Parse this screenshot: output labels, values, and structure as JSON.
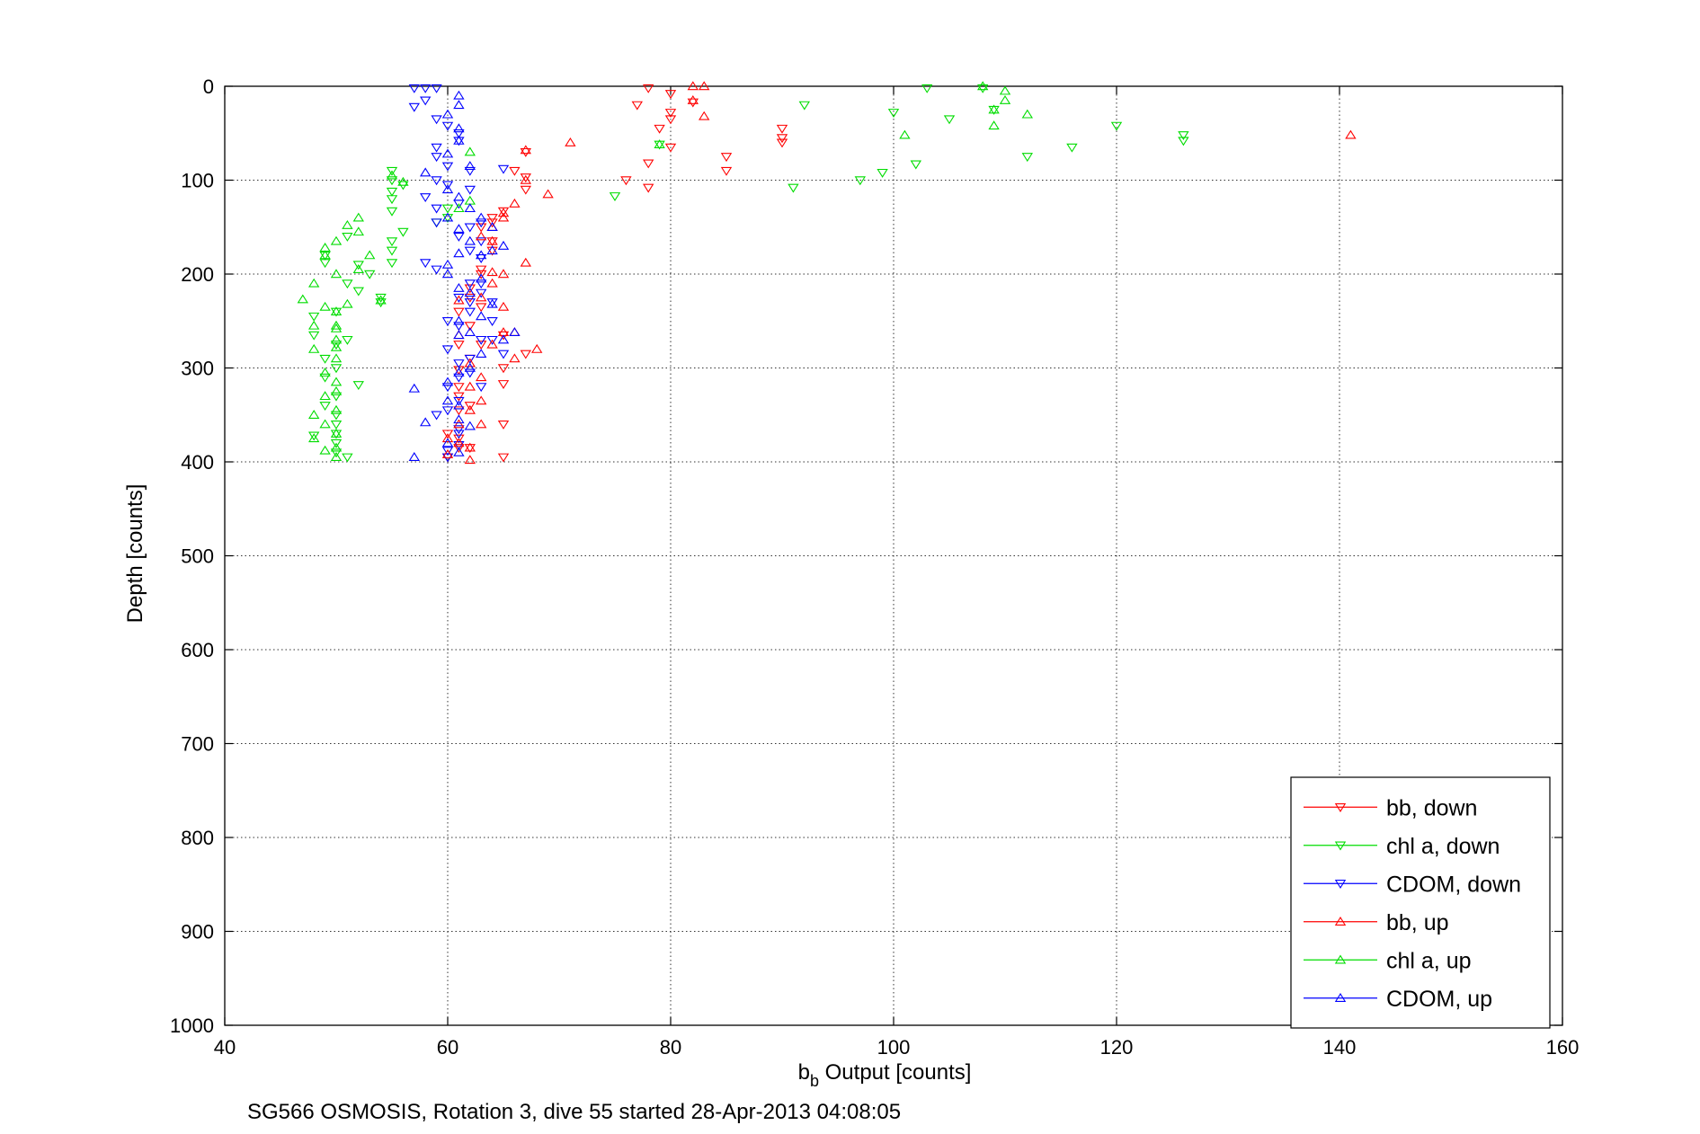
{
  "chart_data": {
    "type": "scatter",
    "xlabel_main": "b",
    "xlabel_sub": "b",
    "xlabel_rest": " Output [counts]",
    "ylabel": "Depth [counts]",
    "caption": "SG566 OSMOSIS, Rotation 3, dive 55 started 28-Apr-2013 04:08:05",
    "xlim": [
      40,
      160
    ],
    "ylim": [
      0,
      1000
    ],
    "y_reversed": true,
    "x_ticks": [
      "40",
      "60",
      "80",
      "100",
      "120",
      "140",
      "160"
    ],
    "y_ticks": [
      "0",
      "100",
      "200",
      "300",
      "400",
      "500",
      "600",
      "700",
      "800",
      "900",
      "1000"
    ],
    "grid": true,
    "legend_position": "bottom-right",
    "series": [
      {
        "name": "bb, down",
        "color": "#ff0000",
        "marker": "triangle-down",
        "points": [
          [
            78,
            2
          ],
          [
            77,
            20
          ],
          [
            80,
            8
          ],
          [
            80,
            28
          ],
          [
            80,
            35
          ],
          [
            79,
            45
          ],
          [
            80,
            65
          ],
          [
            78,
            82
          ],
          [
            76,
            100
          ],
          [
            78,
            108
          ],
          [
            82,
            17
          ],
          [
            85,
            75
          ],
          [
            85,
            90
          ],
          [
            90,
            45
          ],
          [
            90,
            55
          ],
          [
            90,
            60
          ],
          [
            67,
            70
          ],
          [
            66,
            90
          ],
          [
            67,
            97
          ],
          [
            67,
            110
          ],
          [
            65,
            133
          ],
          [
            64,
            145
          ],
          [
            63,
            150
          ],
          [
            64,
            165
          ],
          [
            64,
            175
          ],
          [
            63,
            195
          ],
          [
            62,
            215
          ],
          [
            62,
            225
          ],
          [
            63,
            235
          ],
          [
            61,
            240
          ],
          [
            62,
            255
          ],
          [
            61,
            275
          ],
          [
            63,
            275
          ],
          [
            62,
            290
          ],
          [
            61,
            302
          ],
          [
            61,
            320
          ],
          [
            61,
            330
          ],
          [
            62,
            340
          ],
          [
            61,
            345
          ],
          [
            65,
            300
          ],
          [
            65,
            317
          ],
          [
            65,
            360
          ],
          [
            60,
            370
          ],
          [
            61,
            375
          ],
          [
            61,
            385
          ],
          [
            62,
            385
          ],
          [
            60,
            395
          ],
          [
            65,
            395
          ],
          [
            67,
            285
          ],
          [
            65,
            265
          ],
          [
            64,
            140
          ],
          [
            63,
            200
          ]
        ]
      },
      {
        "name": "chl a, down",
        "color": "#00dd00",
        "marker": "triangle-down",
        "points": [
          [
            103,
            2
          ],
          [
            108,
            2
          ],
          [
            92,
            20
          ],
          [
            100,
            28
          ],
          [
            105,
            35
          ],
          [
            109,
            25
          ],
          [
            112,
            75
          ],
          [
            116,
            65
          ],
          [
            120,
            42
          ],
          [
            126,
            52
          ],
          [
            126,
            58
          ],
          [
            102,
            83
          ],
          [
            99,
            92
          ],
          [
            97,
            100
          ],
          [
            91,
            108
          ],
          [
            75,
            117
          ],
          [
            55,
            90
          ],
          [
            55,
            100
          ],
          [
            56,
            105
          ],
          [
            55,
            112
          ],
          [
            55,
            120
          ],
          [
            55,
            133
          ],
          [
            55,
            188
          ],
          [
            56,
            155
          ],
          [
            55,
            165
          ],
          [
            55,
            175
          ],
          [
            51,
            160
          ],
          [
            49,
            180
          ],
          [
            52,
            190
          ],
          [
            53,
            200
          ],
          [
            51,
            210
          ],
          [
            52,
            218
          ],
          [
            54,
            225
          ],
          [
            54,
            230
          ],
          [
            49,
            188
          ],
          [
            48,
            245
          ],
          [
            50,
            240
          ],
          [
            48,
            265
          ],
          [
            51,
            270
          ],
          [
            50,
            275
          ],
          [
            49,
            290
          ],
          [
            50,
            300
          ],
          [
            49,
            310
          ],
          [
            52,
            318
          ],
          [
            50,
            330
          ],
          [
            49,
            340
          ],
          [
            50,
            350
          ],
          [
            50,
            360
          ],
          [
            50,
            370
          ],
          [
            50,
            380
          ],
          [
            50,
            390
          ],
          [
            48,
            372
          ],
          [
            51,
            395
          ],
          [
            59,
            145
          ],
          [
            60,
            130
          ],
          [
            60,
            140
          ],
          [
            79,
            62
          ]
        ]
      },
      {
        "name": "CDOM, down",
        "color": "#0000ff",
        "marker": "triangle-down",
        "points": [
          [
            57,
            2
          ],
          [
            58,
            2
          ],
          [
            59,
            2
          ],
          [
            58,
            15
          ],
          [
            57,
            22
          ],
          [
            59,
            35
          ],
          [
            60,
            42
          ],
          [
            61,
            50
          ],
          [
            61,
            58
          ],
          [
            59,
            65
          ],
          [
            59,
            75
          ],
          [
            60,
            85
          ],
          [
            59,
            100
          ],
          [
            60,
            105
          ],
          [
            58,
            118
          ],
          [
            62,
            110
          ],
          [
            61,
            125
          ],
          [
            59,
            130
          ],
          [
            59,
            145
          ],
          [
            61,
            160
          ],
          [
            62,
            175
          ],
          [
            63,
            183
          ],
          [
            58,
            188
          ],
          [
            59,
            195
          ],
          [
            62,
            210
          ],
          [
            63,
            220
          ],
          [
            61,
            225
          ],
          [
            62,
            240
          ],
          [
            60,
            250
          ],
          [
            61,
            255
          ],
          [
            60,
            280
          ],
          [
            62,
            290
          ],
          [
            61,
            295
          ],
          [
            61,
            310
          ],
          [
            60,
            320
          ],
          [
            61,
            335
          ],
          [
            60,
            345
          ],
          [
            59,
            350
          ],
          [
            61,
            370
          ],
          [
            61,
            382
          ],
          [
            60,
            395
          ],
          [
            60,
            388
          ],
          [
            61,
            365
          ],
          [
            63,
            165
          ],
          [
            62,
            150
          ],
          [
            65,
            88
          ],
          [
            62,
            90
          ],
          [
            63,
            145
          ],
          [
            63,
            210
          ],
          [
            62,
            230
          ],
          [
            64,
            230
          ],
          [
            64,
            250
          ],
          [
            63,
            270
          ],
          [
            65,
            285
          ],
          [
            64,
            270
          ],
          [
            62,
            305
          ],
          [
            63,
            320
          ]
        ]
      },
      {
        "name": "bb, up",
        "color": "#ff0000",
        "marker": "triangle-up",
        "points": [
          [
            82,
            0
          ],
          [
            83,
            0
          ],
          [
            82,
            15
          ],
          [
            83,
            32
          ],
          [
            141,
            52
          ],
          [
            71,
            60
          ],
          [
            67,
            68
          ],
          [
            69,
            115
          ],
          [
            67,
            100
          ],
          [
            66,
            125
          ],
          [
            65,
            140
          ],
          [
            64,
            150
          ],
          [
            63,
            160
          ],
          [
            64,
            165
          ],
          [
            65,
            135
          ],
          [
            65,
            200
          ],
          [
            65,
            235
          ],
          [
            64,
            210
          ],
          [
            63,
            225
          ],
          [
            65,
            262
          ],
          [
            66,
            262
          ],
          [
            64,
            275
          ],
          [
            68,
            280
          ],
          [
            66,
            290
          ],
          [
            62,
            295
          ],
          [
            63,
            310
          ],
          [
            62,
            320
          ],
          [
            63,
            335
          ],
          [
            62,
            345
          ],
          [
            61,
            360
          ],
          [
            63,
            360
          ],
          [
            60,
            375
          ],
          [
            62,
            385
          ],
          [
            61,
            380
          ],
          [
            62,
            398
          ],
          [
            60,
            392
          ],
          [
            67,
            188
          ],
          [
            64,
            198
          ],
          [
            61,
            228
          ],
          [
            61,
            265
          ]
        ]
      },
      {
        "name": "chl a, up",
        "color": "#00dd00",
        "marker": "triangle-up",
        "points": [
          [
            108,
            0
          ],
          [
            110,
            5
          ],
          [
            110,
            15
          ],
          [
            109,
            25
          ],
          [
            112,
            30
          ],
          [
            109,
            42
          ],
          [
            101,
            52
          ],
          [
            79,
            62
          ],
          [
            62,
            70
          ],
          [
            52,
            140
          ],
          [
            51,
            148
          ],
          [
            52,
            155
          ],
          [
            50,
            165
          ],
          [
            49,
            172
          ],
          [
            49,
            180
          ],
          [
            53,
            180
          ],
          [
            52,
            195
          ],
          [
            50,
            200
          ],
          [
            48,
            210
          ],
          [
            47,
            227
          ],
          [
            54,
            228
          ],
          [
            49,
            235
          ],
          [
            51,
            232
          ],
          [
            50,
            240
          ],
          [
            48,
            255
          ],
          [
            50,
            258
          ],
          [
            50,
            270
          ],
          [
            50,
            278
          ],
          [
            48,
            280
          ],
          [
            50,
            290
          ],
          [
            49,
            305
          ],
          [
            50,
            315
          ],
          [
            50,
            325
          ],
          [
            49,
            330
          ],
          [
            50,
            345
          ],
          [
            48,
            350
          ],
          [
            49,
            360
          ],
          [
            50,
            370
          ],
          [
            48,
            375
          ],
          [
            50,
            385
          ],
          [
            49,
            388
          ],
          [
            50,
            395
          ],
          [
            50,
            255
          ],
          [
            62,
            122
          ],
          [
            61,
            130
          ],
          [
            55,
            95
          ],
          [
            56,
            102
          ]
        ]
      },
      {
        "name": "CDOM, up",
        "color": "#0000ff",
        "marker": "triangle-up",
        "points": [
          [
            61,
            10
          ],
          [
            61,
            20
          ],
          [
            60,
            30
          ],
          [
            61,
            45
          ],
          [
            61,
            58
          ],
          [
            60,
            72
          ],
          [
            62,
            85
          ],
          [
            58,
            92
          ],
          [
            60,
            110
          ],
          [
            61,
            118
          ],
          [
            62,
            130
          ],
          [
            60,
            140
          ],
          [
            61,
            152
          ],
          [
            62,
            165
          ],
          [
            61,
            178
          ],
          [
            63,
            180
          ],
          [
            60,
            200
          ],
          [
            61,
            215
          ],
          [
            62,
            220
          ],
          [
            63,
            245
          ],
          [
            62,
            262
          ],
          [
            61,
            265
          ],
          [
            63,
            285
          ],
          [
            62,
            300
          ],
          [
            61,
            305
          ],
          [
            60,
            315
          ],
          [
            57,
            322
          ],
          [
            60,
            335
          ],
          [
            61,
            340
          ],
          [
            61,
            355
          ],
          [
            58,
            358
          ],
          [
            62,
            362
          ],
          [
            60,
            380
          ],
          [
            61,
            390
          ],
          [
            57,
            395
          ],
          [
            65,
            270
          ],
          [
            66,
            262
          ],
          [
            64,
            232
          ],
          [
            63,
            205
          ],
          [
            64,
            175
          ],
          [
            65,
            170
          ],
          [
            64,
            150
          ],
          [
            63,
            140
          ],
          [
            60,
            190
          ],
          [
            61,
            250
          ]
        ]
      }
    ]
  }
}
